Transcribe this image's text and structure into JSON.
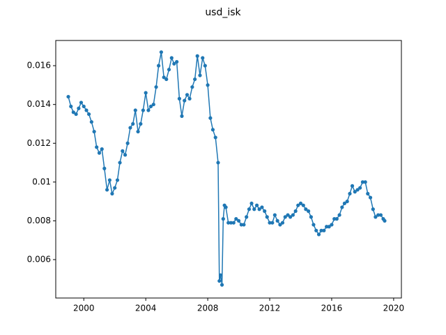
{
  "chart_data": {
    "type": "line",
    "title": "usd_isk",
    "x": [
      1999.0,
      1999.17,
      1999.33,
      1999.5,
      1999.67,
      1999.83,
      2000.0,
      2000.17,
      2000.33,
      2000.5,
      2000.67,
      2000.83,
      2001.0,
      2001.17,
      2001.33,
      2001.5,
      2001.67,
      2001.83,
      2002.0,
      2002.17,
      2002.33,
      2002.5,
      2002.67,
      2002.83,
      2003.0,
      2003.17,
      2003.33,
      2003.5,
      2003.67,
      2003.83,
      2004.0,
      2004.17,
      2004.33,
      2004.5,
      2004.67,
      2004.83,
      2005.0,
      2005.17,
      2005.33,
      2005.5,
      2005.67,
      2005.83,
      2006.0,
      2006.17,
      2006.33,
      2006.5,
      2006.67,
      2006.83,
      2007.0,
      2007.17,
      2007.33,
      2007.5,
      2007.67,
      2007.83,
      2008.0,
      2008.17,
      2008.33,
      2008.5,
      2008.67,
      2008.75,
      2008.83,
      2008.92,
      2009.0,
      2009.08,
      2009.17,
      2009.33,
      2009.5,
      2009.67,
      2009.83,
      2010.0,
      2010.17,
      2010.33,
      2010.5,
      2010.67,
      2010.83,
      2011.0,
      2011.17,
      2011.33,
      2011.5,
      2011.67,
      2011.83,
      2012.0,
      2012.17,
      2012.33,
      2012.5,
      2012.67,
      2012.83,
      2013.0,
      2013.17,
      2013.33,
      2013.5,
      2013.67,
      2013.83,
      2014.0,
      2014.17,
      2014.33,
      2014.5,
      2014.67,
      2014.83,
      2015.0,
      2015.17,
      2015.33,
      2015.5,
      2015.67,
      2015.83,
      2016.0,
      2016.17,
      2016.33,
      2016.5,
      2016.67,
      2016.83,
      2017.0,
      2017.17,
      2017.33,
      2017.5,
      2017.67,
      2017.83,
      2018.0,
      2018.17,
      2018.33,
      2018.5,
      2018.67,
      2018.83,
      2019.0,
      2019.17,
      2019.33,
      2019.42
    ],
    "series": [
      {
        "color": "#1f77b4",
        "values": [
          0.0144,
          0.0139,
          0.0136,
          0.0135,
          0.0138,
          0.0141,
          0.0139,
          0.0137,
          0.0135,
          0.0131,
          0.0126,
          0.0118,
          0.0115,
          0.0117,
          0.0107,
          0.0096,
          0.0101,
          0.0094,
          0.0097,
          0.0101,
          0.011,
          0.0116,
          0.0114,
          0.012,
          0.0128,
          0.013,
          0.0137,
          0.0126,
          0.013,
          0.0137,
          0.0146,
          0.0137,
          0.0139,
          0.014,
          0.0149,
          0.016,
          0.0167,
          0.0154,
          0.0153,
          0.0158,
          0.0164,
          0.0161,
          0.0162,
          0.0143,
          0.0134,
          0.0142,
          0.0145,
          0.0143,
          0.0149,
          0.0153,
          0.0165,
          0.0155,
          0.0164,
          0.016,
          0.015,
          0.0133,
          0.0127,
          0.0123,
          0.011,
          0.0049,
          0.0052,
          0.0047,
          0.0081,
          0.0088,
          0.0087,
          0.0079,
          0.0079,
          0.0079,
          0.0081,
          0.008,
          0.0078,
          0.0078,
          0.0082,
          0.0086,
          0.0089,
          0.0086,
          0.0088,
          0.0086,
          0.0087,
          0.0085,
          0.0082,
          0.0079,
          0.0079,
          0.0083,
          0.008,
          0.0078,
          0.0079,
          0.0082,
          0.0083,
          0.0082,
          0.0083,
          0.0085,
          0.0088,
          0.0089,
          0.0088,
          0.0086,
          0.0085,
          0.0082,
          0.0078,
          0.0075,
          0.0073,
          0.0075,
          0.0075,
          0.0077,
          0.0077,
          0.0078,
          0.0081,
          0.0081,
          0.0083,
          0.0087,
          0.0089,
          0.009,
          0.0094,
          0.0098,
          0.0095,
          0.0096,
          0.0097,
          0.01,
          0.01,
          0.0094,
          0.0092,
          0.0086,
          0.0082,
          0.0083,
          0.0083,
          0.0081,
          0.008
        ]
      }
    ],
    "xlim": [
      1998.19,
      2020.5
    ],
    "xticks": [
      2000,
      2004,
      2008,
      2012,
      2016,
      2020
    ],
    "ylim": [
      0.00402,
      0.0173
    ],
    "yticks": [
      0.006,
      0.008,
      0.01,
      0.012,
      0.014,
      0.016
    ]
  }
}
